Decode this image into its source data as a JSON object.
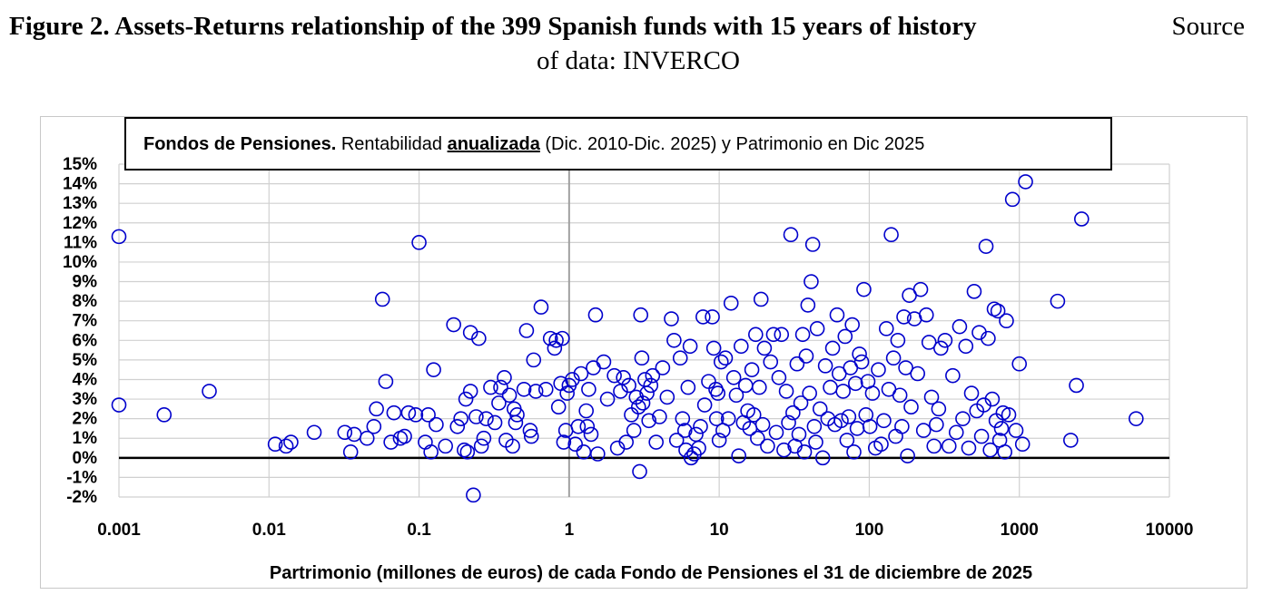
{
  "caption": {
    "figure": "Figure 2. Assets-Returns relationship of the 399 Spanish funds with 15 years of history",
    "source_part1": "Source",
    "source_part2": "of data: INVERCO"
  },
  "chart_data": {
    "type": "scatter",
    "title": {
      "bold": "Fondos de Pensiones.",
      "normal1": " Rentabilidad ",
      "underlined": "anualizada",
      "normal2": " (Dic. 2010-Dic. 2025) y Patrimonio en Dic 2025"
    },
    "xlabel": "Partrimonio (millones de euros) de cada Fondo de Pensiones el 31 de diciembre de 2025",
    "ylabel": "",
    "x_scale": "log",
    "xlim": [
      0.001,
      10000
    ],
    "ylim": [
      -2,
      15
    ],
    "x_ticks": [
      0.001,
      0.01,
      0.1,
      1,
      10,
      100,
      1000,
      10000
    ],
    "x_tick_labels": [
      "0.001",
      "0.01",
      "0.1",
      "1",
      "10",
      "100",
      "1000",
      "10000"
    ],
    "y_ticks": [
      -2,
      -1,
      0,
      1,
      2,
      3,
      4,
      5,
      6,
      7,
      8,
      9,
      10,
      11,
      12,
      13,
      14,
      15
    ],
    "y_tick_labels": [
      "-2%",
      "-1%",
      "0%",
      "1%",
      "2%",
      "3%",
      "4%",
      "5%",
      "6%",
      "7%",
      "8%",
      "9%",
      "10%",
      "11%",
      "12%",
      "13%",
      "14%",
      "15%"
    ],
    "grid": true,
    "marker": "open-circle",
    "marker_color": "#0000cc",
    "zero_line_color": "#000000",
    "points": [
      [
        0.001,
        11.3
      ],
      [
        0.001,
        2.7
      ],
      [
        0.002,
        2.2
      ],
      [
        0.004,
        3.4
      ],
      [
        0.011,
        0.7
      ],
      [
        0.013,
        0.6
      ],
      [
        0.014,
        0.8
      ],
      [
        0.02,
        1.3
      ],
      [
        0.032,
        1.3
      ],
      [
        0.035,
        0.3
      ],
      [
        0.037,
        1.2
      ],
      [
        0.045,
        1.0
      ],
      [
        0.05,
        1.6
      ],
      [
        0.052,
        2.5
      ],
      [
        0.057,
        8.1
      ],
      [
        0.06,
        3.9
      ],
      [
        0.065,
        0.8
      ],
      [
        0.068,
        2.3
      ],
      [
        0.075,
        1.0
      ],
      [
        0.08,
        1.1
      ],
      [
        0.085,
        2.3
      ],
      [
        0.095,
        2.2
      ],
      [
        0.1,
        11.0
      ],
      [
        0.11,
        0.8
      ],
      [
        0.115,
        2.2
      ],
      [
        0.12,
        0.3
      ],
      [
        0.125,
        4.5
      ],
      [
        0.13,
        1.7
      ],
      [
        0.15,
        0.6
      ],
      [
        0.17,
        6.8
      ],
      [
        0.18,
        1.6
      ],
      [
        0.19,
        2.0
      ],
      [
        0.2,
        0.4
      ],
      [
        0.205,
        3.0
      ],
      [
        0.21,
        0.3
      ],
      [
        0.22,
        6.4
      ],
      [
        0.22,
        3.4
      ],
      [
        0.23,
        -1.9
      ],
      [
        0.24,
        2.1
      ],
      [
        0.25,
        6.1
      ],
      [
        0.26,
        0.6
      ],
      [
        0.27,
        1.0
      ],
      [
        0.28,
        2.0
      ],
      [
        0.3,
        3.6
      ],
      [
        0.32,
        1.8
      ],
      [
        0.34,
        2.8
      ],
      [
        0.35,
        3.6
      ],
      [
        0.37,
        4.1
      ],
      [
        0.38,
        0.9
      ],
      [
        0.4,
        3.2
      ],
      [
        0.42,
        0.6
      ],
      [
        0.43,
        2.5
      ],
      [
        0.44,
        1.8
      ],
      [
        0.45,
        2.2
      ],
      [
        0.5,
        3.5
      ],
      [
        0.52,
        6.5
      ],
      [
        0.55,
        1.4
      ],
      [
        0.56,
        1.1
      ],
      [
        0.58,
        5.0
      ],
      [
        0.6,
        3.4
      ],
      [
        0.65,
        7.7
      ],
      [
        0.7,
        3.5
      ],
      [
        0.75,
        6.1
      ],
      [
        0.8,
        5.6
      ],
      [
        0.82,
        6.0
      ],
      [
        0.85,
        2.6
      ],
      [
        0.88,
        3.8
      ],
      [
        0.9,
        6.1
      ],
      [
        0.92,
        0.8
      ],
      [
        0.95,
        1.4
      ],
      [
        0.97,
        3.3
      ],
      [
        1.0,
        3.7
      ],
      [
        1.05,
        4.0
      ],
      [
        1.1,
        0.7
      ],
      [
        1.15,
        1.6
      ],
      [
        1.2,
        4.3
      ],
      [
        1.25,
        0.3
      ],
      [
        1.3,
        2.4
      ],
      [
        1.32,
        1.6
      ],
      [
        1.35,
        3.5
      ],
      [
        1.4,
        1.2
      ],
      [
        1.45,
        4.6
      ],
      [
        1.5,
        7.3
      ],
      [
        1.55,
        0.2
      ],
      [
        1.7,
        4.9
      ],
      [
        1.8,
        3.0
      ],
      [
        2.0,
        4.2
      ],
      [
        2.1,
        0.5
      ],
      [
        2.2,
        3.4
      ],
      [
        2.3,
        4.1
      ],
      [
        2.4,
        0.8
      ],
      [
        2.5,
        3.7
      ],
      [
        2.6,
        2.2
      ],
      [
        2.7,
        1.4
      ],
      [
        2.8,
        3.1
      ],
      [
        2.9,
        2.6
      ],
      [
        2.95,
        -0.7
      ],
      [
        3.0,
        7.3
      ],
      [
        3.05,
        5.1
      ],
      [
        3.1,
        2.8
      ],
      [
        3.2,
        4.0
      ],
      [
        3.3,
        3.3
      ],
      [
        3.4,
        1.9
      ],
      [
        3.5,
        3.7
      ],
      [
        3.6,
        4.2
      ],
      [
        3.8,
        0.8
      ],
      [
        4.0,
        2.1
      ],
      [
        4.2,
        4.6
      ],
      [
        4.5,
        3.1
      ],
      [
        4.8,
        7.1
      ],
      [
        5.0,
        6.0
      ],
      [
        5.2,
        0.9
      ],
      [
        5.5,
        5.1
      ],
      [
        5.7,
        2.0
      ],
      [
        5.9,
        1.4
      ],
      [
        6.0,
        0.4
      ],
      [
        6.2,
        3.6
      ],
      [
        6.4,
        5.7
      ],
      [
        6.5,
        0.0
      ],
      [
        6.8,
        0.2
      ],
      [
        7.0,
        1.2
      ],
      [
        7.3,
        0.5
      ],
      [
        7.5,
        1.6
      ],
      [
        7.8,
        7.2
      ],
      [
        8.0,
        2.7
      ],
      [
        8.5,
        3.9
      ],
      [
        9.0,
        7.2
      ],
      [
        9.2,
        5.6
      ],
      [
        9.5,
        3.5
      ],
      [
        9.6,
        2.0
      ],
      [
        9.8,
        3.3
      ],
      [
        10.0,
        0.9
      ],
      [
        10.3,
        4.9
      ],
      [
        10.6,
        1.4
      ],
      [
        11.0,
        5.1
      ],
      [
        11.5,
        2.0
      ],
      [
        12.0,
        7.9
      ],
      [
        12.5,
        4.1
      ],
      [
        13.0,
        3.2
      ],
      [
        13.5,
        0.1
      ],
      [
        14.0,
        5.7
      ],
      [
        14.5,
        1.8
      ],
      [
        15.0,
        3.7
      ],
      [
        15.5,
        2.4
      ],
      [
        16.0,
        1.5
      ],
      [
        16.5,
        4.5
      ],
      [
        17.0,
        2.2
      ],
      [
        17.5,
        6.3
      ],
      [
        18.0,
        1.0
      ],
      [
        18.5,
        3.6
      ],
      [
        19.0,
        8.1
      ],
      [
        19.5,
        1.7
      ],
      [
        20.0,
        5.6
      ],
      [
        21.0,
        0.6
      ],
      [
        22.0,
        4.9
      ],
      [
        23.0,
        6.3
      ],
      [
        24.0,
        1.3
      ],
      [
        25.0,
        4.1
      ],
      [
        26.0,
        6.3
      ],
      [
        27.0,
        0.4
      ],
      [
        28.0,
        3.4
      ],
      [
        29.0,
        1.8
      ],
      [
        30.0,
        11.4
      ],
      [
        31.0,
        2.3
      ],
      [
        32.0,
        0.6
      ],
      [
        33.0,
        4.8
      ],
      [
        34.0,
        1.2
      ],
      [
        35.0,
        2.8
      ],
      [
        36.0,
        6.3
      ],
      [
        37.0,
        0.3
      ],
      [
        38.0,
        5.2
      ],
      [
        39.0,
        7.8
      ],
      [
        40.0,
        3.3
      ],
      [
        41.0,
        9.0
      ],
      [
        42.0,
        10.9
      ],
      [
        43.0,
        1.6
      ],
      [
        44.0,
        0.8
      ],
      [
        45.0,
        6.6
      ],
      [
        47.0,
        2.5
      ],
      [
        49.0,
        0.0
      ],
      [
        51.0,
        4.7
      ],
      [
        53.0,
        2.0
      ],
      [
        55.0,
        3.6
      ],
      [
        57.0,
        5.6
      ],
      [
        59.0,
        1.7
      ],
      [
        61.0,
        7.3
      ],
      [
        63.0,
        4.3
      ],
      [
        65.0,
        1.9
      ],
      [
        67.0,
        3.4
      ],
      [
        69.0,
        6.2
      ],
      [
        71.0,
        0.9
      ],
      [
        73.0,
        2.1
      ],
      [
        75.0,
        4.6
      ],
      [
        77.0,
        6.8
      ],
      [
        79.0,
        0.3
      ],
      [
        81.0,
        3.8
      ],
      [
        83.0,
        1.5
      ],
      [
        86.0,
        5.3
      ],
      [
        89.0,
        4.9
      ],
      [
        92.0,
        8.6
      ],
      [
        95.0,
        2.2
      ],
      [
        98.0,
        3.9
      ],
      [
        101.0,
        1.6
      ],
      [
        105.0,
        3.3
      ],
      [
        110.0,
        0.5
      ],
      [
        115.0,
        4.5
      ],
      [
        120.0,
        0.7
      ],
      [
        125.0,
        1.9
      ],
      [
        130.0,
        6.6
      ],
      [
        135.0,
        3.5
      ],
      [
        140.0,
        11.4
      ],
      [
        145.0,
        5.1
      ],
      [
        150.0,
        1.1
      ],
      [
        155.0,
        6.0
      ],
      [
        160.0,
        3.2
      ],
      [
        165.0,
        1.6
      ],
      [
        170.0,
        7.2
      ],
      [
        175.0,
        4.6
      ],
      [
        180.0,
        0.1
      ],
      [
        185.0,
        8.3
      ],
      [
        190.0,
        2.6
      ],
      [
        200.0,
        7.1
      ],
      [
        210.0,
        4.3
      ],
      [
        220.0,
        8.6
      ],
      [
        230.0,
        1.4
      ],
      [
        240.0,
        7.3
      ],
      [
        250.0,
        5.9
      ],
      [
        260.0,
        3.1
      ],
      [
        270.0,
        0.6
      ],
      [
        280.0,
        1.7
      ],
      [
        290.0,
        2.5
      ],
      [
        300.0,
        5.6
      ],
      [
        320.0,
        6.0
      ],
      [
        340.0,
        0.6
      ],
      [
        360.0,
        4.2
      ],
      [
        380.0,
        1.3
      ],
      [
        400.0,
        6.7
      ],
      [
        420.0,
        2.0
      ],
      [
        440.0,
        5.7
      ],
      [
        460.0,
        0.5
      ],
      [
        480.0,
        3.3
      ],
      [
        500.0,
        8.5
      ],
      [
        520.0,
        2.4
      ],
      [
        540.0,
        6.4
      ],
      [
        560.0,
        1.1
      ],
      [
        580.0,
        2.7
      ],
      [
        600.0,
        10.8
      ],
      [
        620.0,
        6.1
      ],
      [
        640.0,
        0.4
      ],
      [
        660.0,
        3.0
      ],
      [
        680.0,
        7.6
      ],
      [
        700.0,
        1.9
      ],
      [
        720.0,
        7.5
      ],
      [
        740.0,
        0.9
      ],
      [
        760.0,
        1.5
      ],
      [
        780.0,
        2.3
      ],
      [
        800.0,
        0.3
      ],
      [
        820.0,
        7.0
      ],
      [
        850.0,
        2.2
      ],
      [
        900.0,
        13.2
      ],
      [
        950.0,
        1.4
      ],
      [
        1000.0,
        4.8
      ],
      [
        1050.0,
        0.7
      ],
      [
        1100.0,
        14.1
      ],
      [
        1800.0,
        8.0
      ],
      [
        2200.0,
        0.9
      ],
      [
        2400.0,
        3.7
      ],
      [
        2600.0,
        12.2
      ],
      [
        6000.0,
        2.0
      ]
    ]
  }
}
